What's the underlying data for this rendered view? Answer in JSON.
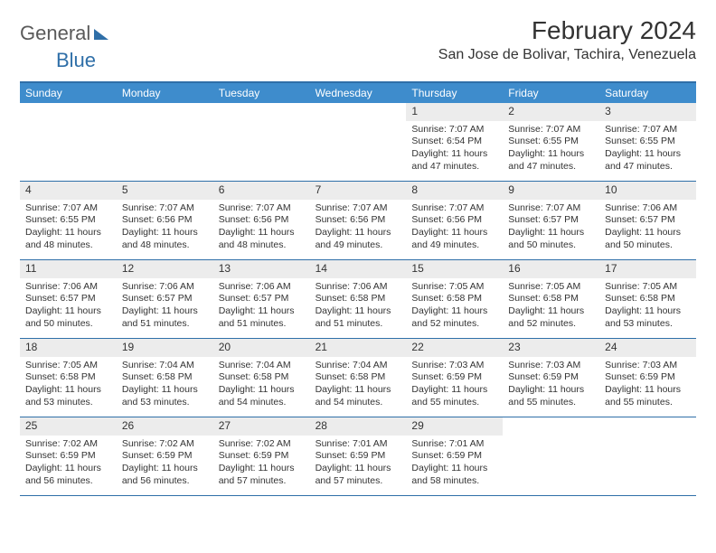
{
  "logo": {
    "text1": "General",
    "text2": "Blue"
  },
  "title": "February 2024",
  "location": "San Jose de Bolivar, Tachira, Venezuela",
  "header_bg": "#3e8ccc",
  "rule_color": "#2f6fa8",
  "daynum_bg": "#ececec",
  "dow": [
    "Sunday",
    "Monday",
    "Tuesday",
    "Wednesday",
    "Thursday",
    "Friday",
    "Saturday"
  ],
  "weeks": [
    [
      null,
      null,
      null,
      null,
      {
        "n": "1",
        "sr": "Sunrise: 7:07 AM",
        "ss": "Sunset: 6:54 PM",
        "d1": "Daylight: 11 hours",
        "d2": "and 47 minutes."
      },
      {
        "n": "2",
        "sr": "Sunrise: 7:07 AM",
        "ss": "Sunset: 6:55 PM",
        "d1": "Daylight: 11 hours",
        "d2": "and 47 minutes."
      },
      {
        "n": "3",
        "sr": "Sunrise: 7:07 AM",
        "ss": "Sunset: 6:55 PM",
        "d1": "Daylight: 11 hours",
        "d2": "and 47 minutes."
      }
    ],
    [
      {
        "n": "4",
        "sr": "Sunrise: 7:07 AM",
        "ss": "Sunset: 6:55 PM",
        "d1": "Daylight: 11 hours",
        "d2": "and 48 minutes."
      },
      {
        "n": "5",
        "sr": "Sunrise: 7:07 AM",
        "ss": "Sunset: 6:56 PM",
        "d1": "Daylight: 11 hours",
        "d2": "and 48 minutes."
      },
      {
        "n": "6",
        "sr": "Sunrise: 7:07 AM",
        "ss": "Sunset: 6:56 PM",
        "d1": "Daylight: 11 hours",
        "d2": "and 48 minutes."
      },
      {
        "n": "7",
        "sr": "Sunrise: 7:07 AM",
        "ss": "Sunset: 6:56 PM",
        "d1": "Daylight: 11 hours",
        "d2": "and 49 minutes."
      },
      {
        "n": "8",
        "sr": "Sunrise: 7:07 AM",
        "ss": "Sunset: 6:56 PM",
        "d1": "Daylight: 11 hours",
        "d2": "and 49 minutes."
      },
      {
        "n": "9",
        "sr": "Sunrise: 7:07 AM",
        "ss": "Sunset: 6:57 PM",
        "d1": "Daylight: 11 hours",
        "d2": "and 50 minutes."
      },
      {
        "n": "10",
        "sr": "Sunrise: 7:06 AM",
        "ss": "Sunset: 6:57 PM",
        "d1": "Daylight: 11 hours",
        "d2": "and 50 minutes."
      }
    ],
    [
      {
        "n": "11",
        "sr": "Sunrise: 7:06 AM",
        "ss": "Sunset: 6:57 PM",
        "d1": "Daylight: 11 hours",
        "d2": "and 50 minutes."
      },
      {
        "n": "12",
        "sr": "Sunrise: 7:06 AM",
        "ss": "Sunset: 6:57 PM",
        "d1": "Daylight: 11 hours",
        "d2": "and 51 minutes."
      },
      {
        "n": "13",
        "sr": "Sunrise: 7:06 AM",
        "ss": "Sunset: 6:57 PM",
        "d1": "Daylight: 11 hours",
        "d2": "and 51 minutes."
      },
      {
        "n": "14",
        "sr": "Sunrise: 7:06 AM",
        "ss": "Sunset: 6:58 PM",
        "d1": "Daylight: 11 hours",
        "d2": "and 51 minutes."
      },
      {
        "n": "15",
        "sr": "Sunrise: 7:05 AM",
        "ss": "Sunset: 6:58 PM",
        "d1": "Daylight: 11 hours",
        "d2": "and 52 minutes."
      },
      {
        "n": "16",
        "sr": "Sunrise: 7:05 AM",
        "ss": "Sunset: 6:58 PM",
        "d1": "Daylight: 11 hours",
        "d2": "and 52 minutes."
      },
      {
        "n": "17",
        "sr": "Sunrise: 7:05 AM",
        "ss": "Sunset: 6:58 PM",
        "d1": "Daylight: 11 hours",
        "d2": "and 53 minutes."
      }
    ],
    [
      {
        "n": "18",
        "sr": "Sunrise: 7:05 AM",
        "ss": "Sunset: 6:58 PM",
        "d1": "Daylight: 11 hours",
        "d2": "and 53 minutes."
      },
      {
        "n": "19",
        "sr": "Sunrise: 7:04 AM",
        "ss": "Sunset: 6:58 PM",
        "d1": "Daylight: 11 hours",
        "d2": "and 53 minutes."
      },
      {
        "n": "20",
        "sr": "Sunrise: 7:04 AM",
        "ss": "Sunset: 6:58 PM",
        "d1": "Daylight: 11 hours",
        "d2": "and 54 minutes."
      },
      {
        "n": "21",
        "sr": "Sunrise: 7:04 AM",
        "ss": "Sunset: 6:58 PM",
        "d1": "Daylight: 11 hours",
        "d2": "and 54 minutes."
      },
      {
        "n": "22",
        "sr": "Sunrise: 7:03 AM",
        "ss": "Sunset: 6:59 PM",
        "d1": "Daylight: 11 hours",
        "d2": "and 55 minutes."
      },
      {
        "n": "23",
        "sr": "Sunrise: 7:03 AM",
        "ss": "Sunset: 6:59 PM",
        "d1": "Daylight: 11 hours",
        "d2": "and 55 minutes."
      },
      {
        "n": "24",
        "sr": "Sunrise: 7:03 AM",
        "ss": "Sunset: 6:59 PM",
        "d1": "Daylight: 11 hours",
        "d2": "and 55 minutes."
      }
    ],
    [
      {
        "n": "25",
        "sr": "Sunrise: 7:02 AM",
        "ss": "Sunset: 6:59 PM",
        "d1": "Daylight: 11 hours",
        "d2": "and 56 minutes."
      },
      {
        "n": "26",
        "sr": "Sunrise: 7:02 AM",
        "ss": "Sunset: 6:59 PM",
        "d1": "Daylight: 11 hours",
        "d2": "and 56 minutes."
      },
      {
        "n": "27",
        "sr": "Sunrise: 7:02 AM",
        "ss": "Sunset: 6:59 PM",
        "d1": "Daylight: 11 hours",
        "d2": "and 57 minutes."
      },
      {
        "n": "28",
        "sr": "Sunrise: 7:01 AM",
        "ss": "Sunset: 6:59 PM",
        "d1": "Daylight: 11 hours",
        "d2": "and 57 minutes."
      },
      {
        "n": "29",
        "sr": "Sunrise: 7:01 AM",
        "ss": "Sunset: 6:59 PM",
        "d1": "Daylight: 11 hours",
        "d2": "and 58 minutes."
      },
      null,
      null
    ]
  ]
}
